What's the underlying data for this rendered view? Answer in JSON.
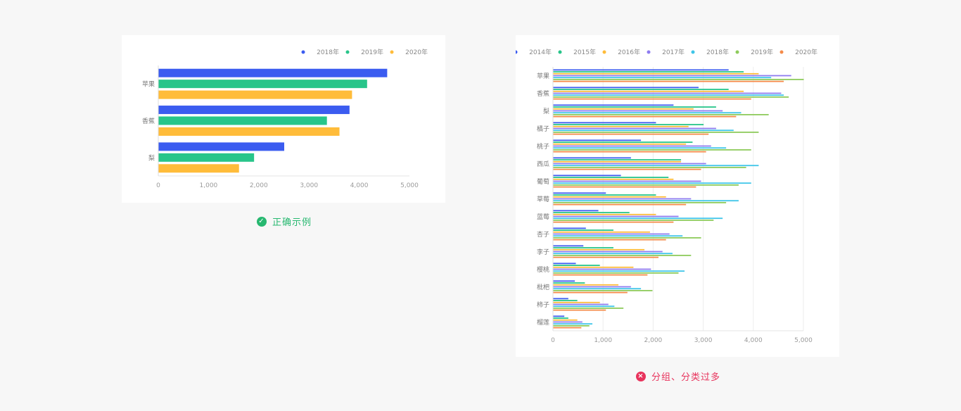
{
  "captions": {
    "good": "正确示例",
    "bad": "分组、分类过多"
  },
  "icons": {
    "good": "check-circle-icon",
    "bad": "close-circle-icon"
  },
  "colors": {
    "good": "#27b870",
    "bad": "#e8335c",
    "axis_text": "#9a9a9a",
    "grid": "#ececec"
  },
  "chart_data": [
    {
      "type": "bar",
      "orientation": "horizontal",
      "categories": [
        "苹果",
        "香蕉",
        "梨"
      ],
      "series": [
        {
          "name": "2018年",
          "color": "#3b5cf0",
          "values": [
            4550,
            3800,
            2500
          ]
        },
        {
          "name": "2019年",
          "color": "#28c58a",
          "values": [
            4150,
            3350,
            1900
          ]
        },
        {
          "name": "2020年",
          "color": "#ffbc3a",
          "values": [
            3850,
            3600,
            1600
          ]
        }
      ],
      "xlim": [
        0,
        5000
      ],
      "xticks": [
        "0",
        "1,000",
        "2,000",
        "3,000",
        "4,000",
        "5,000"
      ],
      "legend": "top-right",
      "grid": false
    },
    {
      "type": "bar",
      "orientation": "horizontal",
      "categories": [
        "苹果",
        "香蕉",
        "梨",
        "橘子",
        "桃子",
        "西瓜",
        "葡萄",
        "草莓",
        "蓝莓",
        "杏子",
        "李子",
        "樱桃",
        "枇杷",
        "柿子",
        "榴莲"
      ],
      "series": [
        {
          "name": "2014年",
          "color": "#3b5cf0",
          "values": [
            3500,
            2900,
            2400,
            2050,
            1750,
            1550,
            1350,
            1050,
            900,
            650,
            600,
            450,
            430,
            300,
            220
          ]
        },
        {
          "name": "2015年",
          "color": "#28c58a",
          "values": [
            3800,
            3500,
            3250,
            3000,
            2780,
            2550,
            2300,
            2050,
            1520,
            1200,
            1200,
            930,
            630,
            480,
            300
          ]
        },
        {
          "name": "2016年",
          "color": "#ffbc3a",
          "values": [
            4100,
            3800,
            2800,
            2700,
            2650,
            2550,
            2400,
            2250,
            2050,
            1930,
            1820,
            1600,
            1300,
            930,
            480
          ]
        },
        {
          "name": "2017年",
          "color": "#8e7cf0",
          "values": [
            4750,
            4550,
            3380,
            3250,
            3150,
            3050,
            2950,
            2750,
            2500,
            2320,
            2180,
            1950,
            1550,
            1100,
            580
          ]
        },
        {
          "name": "2018年",
          "color": "#3ec5e8",
          "values": [
            4350,
            4600,
            3750,
            3600,
            3450,
            4100,
            3950,
            3700,
            3380,
            2580,
            2380,
            2620,
            1750,
            1220,
            780
          ]
        },
        {
          "name": "2019年",
          "color": "#8ecb5c",
          "values": [
            5000,
            4700,
            4300,
            4100,
            3950,
            3850,
            3700,
            3450,
            3200,
            2950,
            2750,
            2500,
            1980,
            1400,
            720
          ]
        },
        {
          "name": "2020年",
          "color": "#f58b4a",
          "values": [
            4600,
            3950,
            3650,
            3100,
            3050,
            2950,
            2850,
            2650,
            2400,
            2250,
            2100,
            1880,
            1480,
            1050,
            560
          ]
        }
      ],
      "xlim": [
        0,
        5000
      ],
      "xticks": [
        "0",
        "1,000",
        "2,000",
        "3,000",
        "4,000",
        "5,000"
      ],
      "legend": "top-right",
      "grid": true
    }
  ]
}
